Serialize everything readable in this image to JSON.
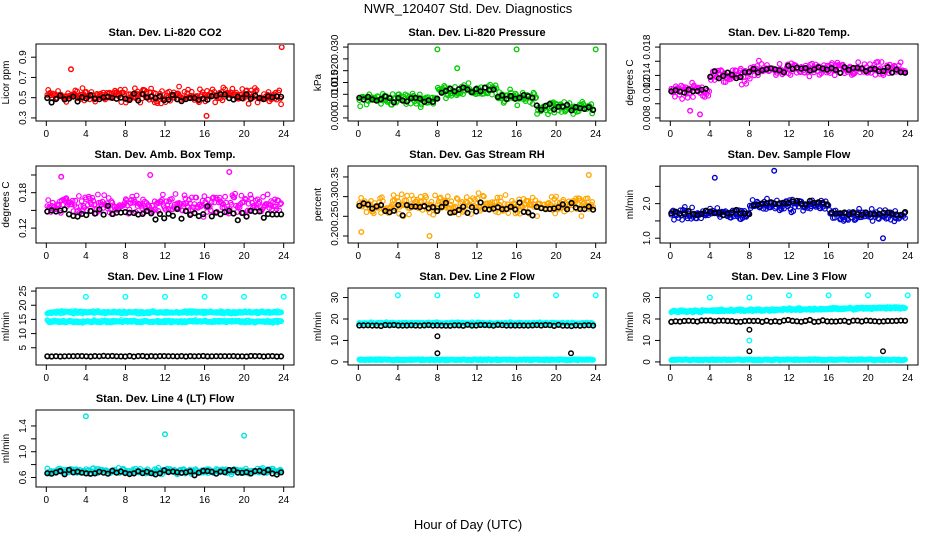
{
  "figure": {
    "title": "NWR_120407  Std. Dev. Diagnostics",
    "xlabel": "Hour of Day (UTC)"
  },
  "chart_data": [
    {
      "type": "scatter",
      "title": "Stan. Dev. Li-820 CO2",
      "ylabel": "Licor ppm",
      "xlim": [
        0,
        24
      ],
      "ylim": [
        0.3,
        1.0
      ],
      "x_ticks": [
        0,
        4,
        8,
        12,
        16,
        20,
        24
      ],
      "y_ticks": [
        0.3,
        0.5,
        0.7,
        0.9
      ],
      "y_tick_labels": [
        "0.3",
        "0.5",
        "0.7",
        "0.9"
      ],
      "grid": false,
      "series": [
        {
          "color": "#ff0000",
          "base": 0.52,
          "spread": 0.1,
          "trend": "flat",
          "outliers": [
            [
              23.8,
              1.0
            ],
            [
              16.2,
              0.32
            ],
            [
              2.5,
              0.78
            ]
          ]
        },
        {
          "color": "#000000",
          "base": 0.5,
          "spread": 0.05,
          "trend": "flat",
          "outliers": []
        }
      ]
    },
    {
      "type": "scatter",
      "title": "Stan. Dev. Li-820 Pressure",
      "ylabel": "kPa",
      "xlim": [
        0,
        24
      ],
      "ylim": [
        0.0,
        0.03
      ],
      "x_ticks": [
        0,
        4,
        8,
        12,
        16,
        20,
        24
      ],
      "y_ticks": [
        0.0,
        0.005,
        0.01,
        0.015,
        0.02,
        0.025,
        0.03
      ],
      "y_tick_labels": [
        "0.000",
        "",
        "0.010",
        "0.015",
        "0.020",
        "",
        "0.030"
      ],
      "grid": false,
      "series": [
        {
          "color": "#00cc00",
          "base": 0.008,
          "spread": 0.004,
          "trend": "pressure",
          "outliers": [
            [
              8,
              0.029
            ],
            [
              16,
              0.029
            ],
            [
              24,
              0.029
            ],
            [
              10,
              0.021
            ]
          ]
        },
        {
          "color": "#000000",
          "base": 0.008,
          "spread": 0.002,
          "trend": "pressure",
          "outliers": []
        }
      ]
    },
    {
      "type": "scatter",
      "title": "Stan. Dev. Li-820 Temp.",
      "ylabel": "degrees C",
      "xlim": [
        0,
        24
      ],
      "ylim": [
        0.008,
        0.018
      ],
      "x_ticks": [
        0,
        4,
        8,
        12,
        16,
        20,
        24
      ],
      "y_ticks": [
        0.008,
        0.01,
        0.012,
        0.014,
        0.016,
        0.018
      ],
      "y_tick_labels": [
        "0.008",
        "",
        "0.012",
        "0.014",
        "",
        "0.018"
      ],
      "grid": false,
      "series": [
        {
          "color": "#ff00ff",
          "base": 0.0145,
          "spread": 0.0015,
          "trend": "temp",
          "outliers": [
            [
              3,
              0.0085
            ],
            [
              2,
              0.009
            ]
          ]
        },
        {
          "color": "#000000",
          "base": 0.0145,
          "spread": 0.0008,
          "trend": "temp",
          "outliers": []
        }
      ]
    },
    {
      "type": "scatter",
      "title": "Stan. Dev. Amb. Box Temp.",
      "ylabel": "degrees C",
      "xlim": [
        0,
        24
      ],
      "ylim": [
        0.1,
        0.22
      ],
      "x_ticks": [
        0,
        4,
        8,
        12,
        16,
        20,
        24
      ],
      "y_ticks": [
        0.12,
        0.15,
        0.18,
        0.21
      ],
      "y_tick_labels": [
        "0.12",
        "",
        "0.18",
        ""
      ],
      "grid": false,
      "series": [
        {
          "color": "#ff00ff",
          "base": 0.16,
          "spread": 0.025,
          "trend": "flat",
          "outliers": [
            [
              18.5,
              0.215
            ],
            [
              10.5,
              0.21
            ],
            [
              1.5,
              0.207
            ]
          ]
        },
        {
          "color": "#000000",
          "base": 0.145,
          "spread": 0.015,
          "trend": "flat",
          "outliers": []
        }
      ]
    },
    {
      "type": "scatter",
      "title": "Stan. Dev. Gas Stream RH",
      "ylabel": "percent",
      "xlim": [
        0,
        24
      ],
      "ylim": [
        0.19,
        0.37
      ],
      "x_ticks": [
        0,
        4,
        8,
        12,
        16,
        20,
        24
      ],
      "y_ticks": [
        0.2,
        0.25,
        0.3,
        0.35
      ],
      "y_tick_labels": [
        "0.20",
        "0.25",
        "0.30",
        "0.35"
      ],
      "grid": false,
      "series": [
        {
          "color": "#ffa500",
          "base": 0.28,
          "spread": 0.035,
          "trend": "flat",
          "outliers": [
            [
              0.3,
              0.21
            ],
            [
              7.2,
              0.2
            ],
            [
              23.3,
              0.355
            ]
          ]
        },
        {
          "color": "#000000",
          "base": 0.27,
          "spread": 0.025,
          "trend": "flat",
          "outliers": []
        }
      ]
    },
    {
      "type": "scatter",
      "title": "Stan. Dev. Sample Flow",
      "ylabel": "ml/min",
      "xlim": [
        0,
        24
      ],
      "ylim": [
        0.95,
        3.0
      ],
      "x_ticks": [
        0,
        4,
        8,
        12,
        16,
        20,
        24
      ],
      "y_ticks": [
        1.0,
        1.5,
        2.0,
        2.5
      ],
      "y_tick_labels": [
        "1.0",
        "",
        "2.0",
        ""
      ],
      "grid": false,
      "series": [
        {
          "color": "#0000cc",
          "base": 1.75,
          "spread": 0.25,
          "trend": "flow",
          "outliers": [
            [
              10.5,
              2.95
            ],
            [
              4.5,
              2.75
            ],
            [
              21.5,
              1.0
            ]
          ]
        },
        {
          "color": "#000000",
          "base": 1.8,
          "spread": 0.12,
          "trend": "flow",
          "outliers": []
        }
      ]
    },
    {
      "type": "scatter",
      "title": "Stan. Dev. Line 1 Flow",
      "ylabel": "ml/min",
      "xlim": [
        0,
        24
      ],
      "ylim": [
        0,
        25
      ],
      "x_ticks": [
        0,
        4,
        8,
        12,
        16,
        20,
        24
      ],
      "y_ticks": [
        5,
        10,
        15,
        20,
        25
      ],
      "y_tick_labels": [
        "5",
        "10",
        "15",
        "20",
        "25"
      ],
      "grid": false,
      "series": [
        {
          "color": "#00ffff",
          "base": 17.5,
          "spread": 0.6,
          "trend": "flat",
          "outliers": [
            [
              4,
              23
            ],
            [
              8,
              23
            ],
            [
              12,
              23
            ],
            [
              16,
              23
            ],
            [
              20,
              23
            ],
            [
              24,
              23
            ]
          ]
        },
        {
          "color": "#00ffff",
          "base": 14.3,
          "spread": 0.6,
          "trend": "flat",
          "outliers": []
        },
        {
          "color": "#000000",
          "base": 2.0,
          "spread": 0.2,
          "trend": "flat",
          "outliers": []
        }
      ]
    },
    {
      "type": "scatter",
      "title": "Stan. Dev. Line 2 Flow",
      "ylabel": "ml/min",
      "xlim": [
        0,
        24
      ],
      "ylim": [
        0,
        33
      ],
      "x_ticks": [
        0,
        4,
        8,
        12,
        16,
        20,
        24
      ],
      "y_ticks": [
        0,
        10,
        20,
        30
      ],
      "y_tick_labels": [
        "0",
        "10",
        "20",
        "30"
      ],
      "grid": false,
      "series": [
        {
          "color": "#00ffff",
          "base": 18,
          "spread": 0.6,
          "trend": "flat",
          "outliers": [
            [
              4,
              31
            ],
            [
              8,
              31
            ],
            [
              12,
              31
            ],
            [
              16,
              31
            ],
            [
              20,
              31
            ],
            [
              24,
              31
            ]
          ]
        },
        {
          "color": "#00ffff",
          "base": 1.0,
          "spread": 0.4,
          "trend": "flat",
          "outliers": []
        },
        {
          "color": "#000000",
          "base": 17,
          "spread": 0.4,
          "trend": "flat",
          "outliers": [
            [
              8,
              4
            ],
            [
              8,
              12
            ],
            [
              21.5,
              4
            ]
          ]
        }
      ]
    },
    {
      "type": "scatter",
      "title": "Stan. Dev. Line 3 Flow",
      "ylabel": "ml/min",
      "xlim": [
        0,
        24
      ],
      "ylim": [
        0,
        33
      ],
      "x_ticks": [
        0,
        4,
        8,
        12,
        16,
        20,
        24
      ],
      "y_ticks": [
        0,
        10,
        20,
        30
      ],
      "y_tick_labels": [
        "0",
        "10",
        "20",
        "30"
      ],
      "grid": false,
      "series": [
        {
          "color": "#00ffff",
          "base": 24.5,
          "spread": 0.8,
          "trend": "rise",
          "outliers": [
            [
              4,
              30
            ],
            [
              8,
              30
            ],
            [
              12,
              31
            ],
            [
              16,
              31
            ],
            [
              20,
              31
            ],
            [
              24,
              31
            ],
            [
              8,
              10
            ]
          ]
        },
        {
          "color": "#00ffff",
          "base": 1.0,
          "spread": 0.4,
          "trend": "flat",
          "outliers": []
        },
        {
          "color": "#000000",
          "base": 19,
          "spread": 0.6,
          "trend": "flat",
          "outliers": [
            [
              8,
              5
            ],
            [
              8,
              15
            ],
            [
              21.5,
              5
            ]
          ]
        }
      ]
    },
    {
      "type": "scatter",
      "title": "Stan. Dev. Line 4 (LT) Flow",
      "ylabel": "ml/min",
      "xlim": [
        0,
        24
      ],
      "ylim": [
        0.5,
        1.6
      ],
      "x_ticks": [
        0,
        4,
        8,
        12,
        16,
        20,
        24
      ],
      "y_ticks": [
        0.6,
        0.8,
        1.0,
        1.2,
        1.4
      ],
      "y_tick_labels": [
        "0.6",
        "",
        "1.0",
        "",
        "1.4"
      ],
      "grid": false,
      "series": [
        {
          "color": "#00e0e0",
          "base": 0.7,
          "spread": 0.07,
          "trend": "flat",
          "outliers": [
            [
              4,
              1.55
            ],
            [
              12,
              1.27
            ],
            [
              20,
              1.25
            ]
          ]
        },
        {
          "color": "#000000",
          "base": 0.68,
          "spread": 0.06,
          "trend": "flat",
          "outliers": []
        }
      ]
    }
  ]
}
